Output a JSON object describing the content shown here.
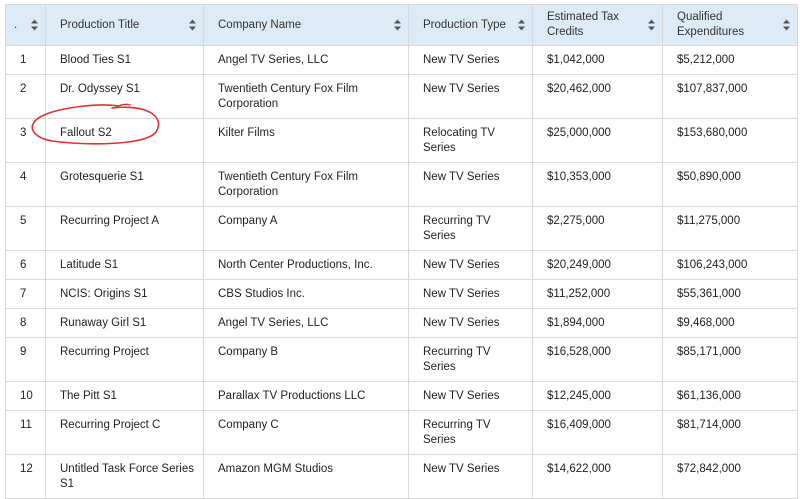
{
  "table": {
    "headers": [
      {
        "label": ".",
        "name": "header-index"
      },
      {
        "label": "Production Title",
        "name": "header-production-title"
      },
      {
        "label": "Company Name",
        "name": "header-company-name"
      },
      {
        "label": "Production Type",
        "name": "header-production-type"
      },
      {
        "label": "Estimated Tax Credits",
        "name": "header-estimated-tax-credits"
      },
      {
        "label": "Qualified Expenditures",
        "name": "header-qualified-expenditures"
      }
    ],
    "rows": [
      [
        "1",
        "Blood Ties S1",
        "Angel TV Series, LLC",
        "New TV Series",
        "$1,042,000",
        "$5,212,000"
      ],
      [
        "2",
        "Dr. Odyssey S1",
        "Twentieth Century Fox Film Corporation",
        "New TV Series",
        "$20,462,000",
        "$107,837,000"
      ],
      [
        "3",
        "Fallout S2",
        "Kilter Films",
        "Relocating TV Series",
        "$25,000,000",
        "$153,680,000"
      ],
      [
        "4",
        "Grotesquerie S1",
        "Twentieth Century Fox Film Corporation",
        "New TV Series",
        "$10,353,000",
        "$50,890,000"
      ],
      [
        "5",
        "Recurring Project A",
        "Company A",
        "Recurring TV Series",
        "$2,275,000",
        "$11,275,000"
      ],
      [
        "6",
        "Latitude S1",
        "North Center Productions, Inc.",
        "New TV Series",
        "$20,249,000",
        "$106,243,000"
      ],
      [
        "7",
        "NCIS: Origins S1",
        "CBS Studios Inc.",
        "New TV Series",
        "$11,252,000",
        "$55,361,000"
      ],
      [
        "8",
        "Runaway Girl S1",
        "Angel TV Series, LLC",
        "New TV Series",
        "$1,894,000",
        "$9,468,000"
      ],
      [
        "9",
        "Recurring Project",
        "Company B",
        "Recurring TV Series",
        "$16,528,000",
        "$85,171,000"
      ],
      [
        "10",
        "The Pitt S1",
        "Parallax TV Productions LLC",
        "New TV Series",
        "$12,245,000",
        "$61,136,000"
      ],
      [
        "11",
        "Recurring Project C",
        "Company C",
        "Recurring TV Series",
        "$16,409,000",
        "$81,714,000"
      ],
      [
        "12",
        "Untitled Task Force Series S1",
        "Amazon MGM Studios",
        "New TV Series",
        "$14,622,000",
        "$72,842,000"
      ]
    ]
  },
  "icons": {
    "sort": "sort-up-down-icon",
    "annotation": "red-circle-annotation"
  },
  "colors": {
    "header_bg": "#dcebf5",
    "border": "#d9d9d9",
    "annotation": "#e03030"
  }
}
